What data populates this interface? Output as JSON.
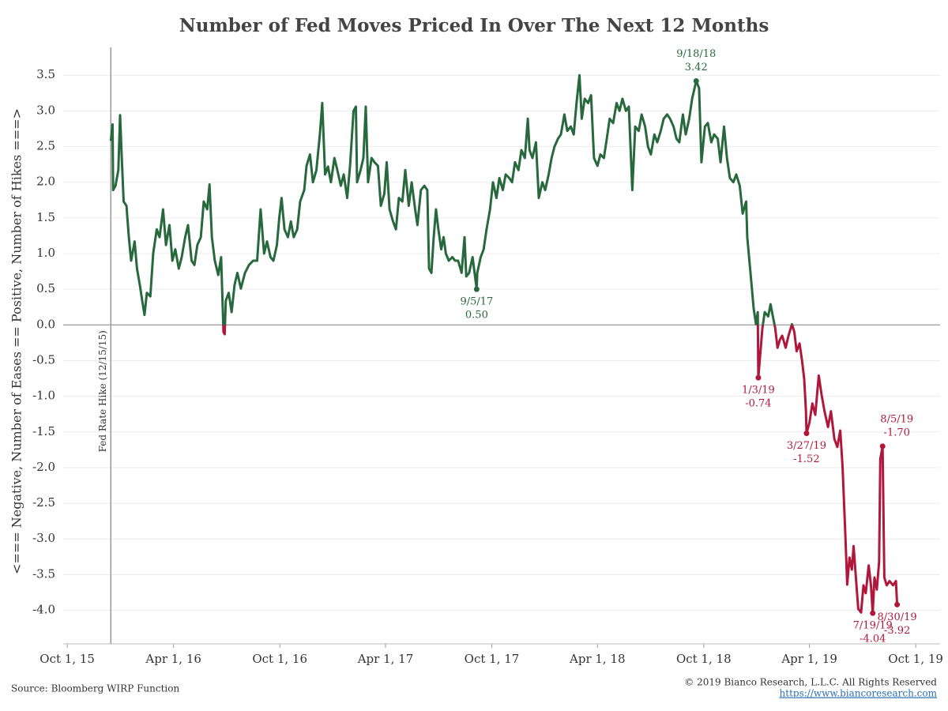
{
  "chart_data": {
    "type": "line",
    "title": "Number of Fed Moves Priced In Over The Next 12 Months",
    "y_label": "<=== Negative, Number of Eases == Positive, Number of Hikes ===>",
    "source": "Source: Bloomberg WIRP Function",
    "copyright": "© 2019 Bianco Research, L.L.C. All Rights Reserved",
    "url": "https://www.biancoresearch.com",
    "color": "#27683c",
    "negative_color": "#b0183b",
    "grid": true,
    "xlim": [
      "2015-09-24",
      "2019-11-12"
    ],
    "xticks": [
      {
        "value": "2015-10-01",
        "label": "Oct 1, 15"
      },
      {
        "value": "2016-04-01",
        "label": "Apr 1, 16"
      },
      {
        "value": "2016-10-01",
        "label": "Oct 1, 16"
      },
      {
        "value": "2017-04-01",
        "label": "Apr 1, 17"
      },
      {
        "value": "2017-10-01",
        "label": "Oct 1, 17"
      },
      {
        "value": "2018-04-01",
        "label": "Apr 1, 18"
      },
      {
        "value": "2018-10-01",
        "label": "Oct 1, 18"
      },
      {
        "value": "2019-04-01",
        "label": "Apr 1, 19"
      },
      {
        "value": "2019-10-01",
        "label": "Oct 1, 19"
      }
    ],
    "ylim": [
      -4.47,
      3.89
    ],
    "yticks": [
      3.5,
      {
        "value": 3,
        "label": "3.0"
      },
      2.5,
      {
        "value": 2,
        "label": "2.0"
      },
      1.5,
      {
        "value": 1,
        "label": "1.0"
      },
      0.5,
      {
        "value": 0,
        "label": "0.0"
      },
      -0.5,
      {
        "value": -1,
        "label": "-1.0"
      },
      -1.5,
      {
        "value": -2,
        "label": "-2.0"
      },
      -2.5,
      {
        "value": -3,
        "label": "-3.0"
      },
      -3.5,
      {
        "value": -4,
        "label": "-4.0"
      }
    ],
    "reference_line": {
      "x": "2015-12-15",
      "label": "Fed Rate Hike (12/15/15)"
    },
    "annotations": [
      {
        "label": "9/5/17",
        "x": "2017-09-05",
        "y": 0.5,
        "value_label": "0.50"
      },
      {
        "label": "9/18/18",
        "x": "2018-09-18",
        "y": 3.42,
        "value_label": "3.42"
      },
      {
        "label": "1/3/19",
        "x": "2019-01-03",
        "y": -0.74,
        "value_label": "-0.74"
      },
      {
        "label": "3/27/19",
        "x": "2019-03-27",
        "y": -1.52,
        "value_label": "-1.52"
      },
      {
        "label": "8/5/19",
        "x": "2019-08-05",
        "y": -1.7,
        "value_label": "-1.70"
      },
      {
        "label": "7/19/19",
        "x": "2019-07-19",
        "y": -4.04,
        "value_label": "-4.04"
      },
      {
        "label": "8/30/19",
        "x": "2019-08-30",
        "y": -3.92,
        "value_label": "-3.92"
      }
    ],
    "x": [
      "2015-12-15",
      "2015-12-18",
      "2015-12-19",
      "2015-12-23",
      "2015-12-28",
      "2015-12-31",
      "2016-01-03",
      "2016-01-06",
      "2016-01-11",
      "2016-01-15",
      "2016-01-19",
      "2016-01-25",
      "2016-01-29",
      "2016-02-03",
      "2016-02-07",
      "2016-02-11",
      "2016-02-15",
      "2016-02-21",
      "2016-02-26",
      "2016-03-03",
      "2016-03-08",
      "2016-03-14",
      "2016-03-19",
      "2016-03-25",
      "2016-03-30",
      "2016-04-04",
      "2016-04-10",
      "2016-04-15",
      "2016-04-21",
      "2016-04-26",
      "2016-05-02",
      "2016-05-07",
      "2016-05-12",
      "2016-05-18",
      "2016-05-23",
      "2016-05-29",
      "2016-06-02",
      "2016-06-06",
      "2016-06-11",
      "2016-06-17",
      "2016-06-22",
      "2016-06-26",
      "2016-06-28",
      "2016-06-30",
      "2016-07-05",
      "2016-07-10",
      "2016-07-15",
      "2016-07-20",
      "2016-07-26",
      "2016-08-02",
      "2016-08-09",
      "2016-08-16",
      "2016-08-23",
      "2016-08-29",
      "2016-09-04",
      "2016-09-09",
      "2016-09-15",
      "2016-09-20",
      "2016-09-26",
      "2016-09-30",
      "2016-10-04",
      "2016-10-09",
      "2016-10-15",
      "2016-10-20",
      "2016-10-25",
      "2016-10-31",
      "2016-11-05",
      "2016-11-12",
      "2016-11-16",
      "2016-11-22",
      "2016-11-27",
      "2016-12-03",
      "2016-12-09",
      "2016-12-13",
      "2016-12-18",
      "2016-12-23",
      "2016-12-28",
      "2017-01-03",
      "2017-01-08",
      "2017-01-14",
      "2017-01-19",
      "2017-01-25",
      "2017-01-30",
      "2017-02-05",
      "2017-02-09",
      "2017-02-11",
      "2017-02-17",
      "2017-02-22",
      "2017-02-26",
      "2017-03-02",
      "2017-03-08",
      "2017-03-13",
      "2017-03-19",
      "2017-03-24",
      "2017-03-30",
      "2017-04-03",
      "2017-04-08",
      "2017-04-14",
      "2017-04-19",
      "2017-04-24",
      "2017-04-30",
      "2017-05-05",
      "2017-05-11",
      "2017-05-16",
      "2017-05-22",
      "2017-05-26",
      "2017-06-01",
      "2017-06-07",
      "2017-06-12",
      "2017-06-15",
      "2017-06-19",
      "2017-06-23",
      "2017-06-27",
      "2017-07-01",
      "2017-07-06",
      "2017-07-10",
      "2017-07-14",
      "2017-07-19",
      "2017-07-25",
      "2017-07-30",
      "2017-08-04",
      "2017-08-10",
      "2017-08-15",
      "2017-08-18",
      "2017-08-23",
      "2017-08-29",
      "2017-09-05",
      "2017-09-06",
      "2017-09-12",
      "2017-09-17",
      "2017-09-22",
      "2017-09-28",
      "2017-10-03",
      "2017-10-09",
      "2017-10-14",
      "2017-10-20",
      "2017-10-25",
      "2017-10-31",
      "2017-11-05",
      "2017-11-10",
      "2017-11-16",
      "2017-11-21",
      "2017-11-27",
      "2017-12-02",
      "2017-12-05",
      "2017-12-10",
      "2017-12-16",
      "2017-12-21",
      "2017-12-27",
      "2018-01-01",
      "2018-01-07",
      "2018-01-12",
      "2018-01-17",
      "2018-01-23",
      "2018-01-28",
      "2018-02-03",
      "2018-02-08",
      "2018-02-14",
      "2018-02-19",
      "2018-02-24",
      "2018-03-01",
      "2018-03-05",
      "2018-03-10",
      "2018-03-16",
      "2018-03-21",
      "2018-03-26",
      "2018-04-01",
      "2018-04-06",
      "2018-04-12",
      "2018-04-17",
      "2018-04-22",
      "2018-04-28",
      "2018-05-04",
      "2018-05-09",
      "2018-05-14",
      "2018-05-20",
      "2018-05-25",
      "2018-05-31",
      "2018-06-05",
      "2018-06-11",
      "2018-06-16",
      "2018-06-22",
      "2018-06-27",
      "2018-07-02",
      "2018-07-08",
      "2018-07-13",
      "2018-07-19",
      "2018-07-24",
      "2018-07-30",
      "2018-08-04",
      "2018-08-10",
      "2018-08-15",
      "2018-08-20",
      "2018-08-26",
      "2018-08-31",
      "2018-09-06",
      "2018-09-11",
      "2018-09-18",
      "2018-09-23",
      "2018-09-27",
      "2018-10-03",
      "2018-10-08",
      "2018-10-14",
      "2018-10-19",
      "2018-10-25",
      "2018-10-30",
      "2018-11-05",
      "2018-11-10",
      "2018-11-15",
      "2018-11-21",
      "2018-11-26",
      "2018-12-02",
      "2018-12-07",
      "2018-12-13",
      "2018-12-15",
      "2018-12-21",
      "2018-12-26",
      "2018-12-30",
      "2019-01-02",
      "2019-01-03",
      "2019-01-10",
      "2019-01-14",
      "2019-01-20",
      "2019-01-24",
      "2019-01-28",
      "2019-02-01",
      "2019-02-05",
      "2019-02-09",
      "2019-02-13",
      "2019-02-19",
      "2019-02-24",
      "2019-03-02",
      "2019-03-06",
      "2019-03-10",
      "2019-03-15",
      "2019-03-19",
      "2019-03-23",
      "2019-03-26",
      "2019-03-27",
      "2019-04-01",
      "2019-04-06",
      "2019-04-11",
      "2019-04-17",
      "2019-04-22",
      "2019-04-27",
      "2019-05-03",
      "2019-05-08",
      "2019-05-14",
      "2019-05-19",
      "2019-05-24",
      "2019-05-28",
      "2019-06-02",
      "2019-06-05",
      "2019-06-09",
      "2019-06-13",
      "2019-06-16",
      "2019-06-20",
      "2019-06-24",
      "2019-06-29",
      "2019-07-03",
      "2019-07-07",
      "2019-07-12",
      "2019-07-16",
      "2019-07-19",
      "2019-07-22",
      "2019-07-26",
      "2019-07-30",
      "2019-08-01",
      "2019-08-05",
      "2019-08-08",
      "2019-08-12",
      "2019-08-17",
      "2019-08-23",
      "2019-08-28",
      "2019-08-30"
    ],
    "values": [
      2.58,
      2.81,
      1.89,
      1.95,
      2.17,
      2.94,
      2.33,
      1.73,
      1.67,
      1.23,
      0.9,
      1.17,
      0.79,
      0.56,
      0.34,
      0.14,
      0.45,
      0.4,
      1.0,
      1.34,
      1.23,
      1.62,
      1.12,
      1.4,
      0.9,
      1.06,
      0.79,
      0.95,
      1.23,
      1.4,
      0.9,
      0.84,
      1.12,
      1.23,
      1.73,
      1.62,
      1.97,
      1.23,
      0.9,
      0.7,
      0.95,
      -0.1,
      -0.13,
      0.34,
      0.45,
      0.18,
      0.56,
      0.73,
      0.51,
      0.73,
      0.84,
      0.9,
      0.9,
      1.62,
      1.0,
      1.17,
      0.95,
      0.9,
      1.12,
      1.5,
      1.78,
      1.34,
      1.23,
      1.45,
      1.23,
      1.34,
      1.73,
      1.89,
      2.23,
      2.39,
      2.0,
      2.17,
      2.67,
      3.11,
      2.11,
      2.22,
      2.0,
      2.34,
      2.17,
      1.95,
      2.11,
      1.78,
      2.23,
      3.0,
      3.06,
      2.0,
      2.17,
      2.34,
      3.06,
      2.0,
      2.34,
      2.28,
      2.23,
      1.67,
      1.84,
      2.28,
      1.62,
      1.45,
      1.34,
      1.78,
      1.73,
      2.17,
      1.67,
      2.0,
      1.62,
      1.4,
      1.89,
      1.95,
      1.89,
      0.79,
      0.73,
      1.23,
      1.62,
      1.34,
      1.06,
      1.23,
      1.0,
      0.9,
      0.95,
      0.9,
      0.9,
      0.73,
      1.23,
      0.68,
      0.73,
      0.95,
      0.5,
      0.73,
      0.95,
      1.06,
      1.34,
      1.62,
      2.0,
      1.78,
      2.06,
      1.89,
      2.11,
      2.06,
      2.0,
      2.28,
      2.17,
      2.45,
      2.34,
      2.89,
      2.45,
      2.34,
      2.56,
      1.78,
      2.0,
      1.89,
      2.11,
      2.34,
      2.5,
      2.61,
      2.67,
      2.95,
      2.72,
      2.78,
      2.67,
      3.11,
      3.5,
      2.89,
      3.17,
      3.11,
      3.22,
      2.34,
      2.23,
      2.39,
      2.34,
      2.61,
      2.89,
      2.83,
      3.11,
      3.0,
      3.17,
      3.0,
      3.06,
      1.89,
      2.78,
      2.72,
      2.95,
      2.78,
      2.5,
      2.39,
      2.67,
      2.56,
      2.72,
      2.89,
      2.95,
      2.89,
      2.78,
      2.61,
      2.56,
      2.95,
      2.67,
      2.89,
      3.17,
      3.42,
      3.32,
      2.28,
      2.78,
      2.83,
      2.56,
      2.67,
      2.61,
      2.28,
      2.78,
      2.34,
      2.06,
      2.0,
      2.11,
      1.95,
      1.56,
      1.73,
      1.23,
      0.68,
      0.23,
      0.01,
      0.18,
      -0.74,
      -0.04,
      0.18,
      0.12,
      0.29,
      0.12,
      -0.04,
      -0.32,
      -0.21,
      -0.15,
      -0.32,
      -0.15,
      0.01,
      -0.1,
      -0.37,
      -0.26,
      -0.48,
      -0.76,
      -1.21,
      -1.52,
      -1.37,
      -1.1,
      -1.26,
      -0.71,
      -0.98,
      -1.21,
      -1.43,
      -1.21,
      -1.6,
      -1.71,
      -1.48,
      -1.98,
      -2.98,
      -3.64,
      -3.26,
      -3.43,
      -3.1,
      -3.54,
      -3.98,
      -4.03,
      -3.65,
      -3.76,
      -3.37,
      -3.65,
      -4.04,
      -3.54,
      -3.71,
      -3.32,
      -1.88,
      -1.7,
      -3.54,
      -3.65,
      -3.59,
      -3.65,
      -3.59,
      -3.92
    ]
  }
}
